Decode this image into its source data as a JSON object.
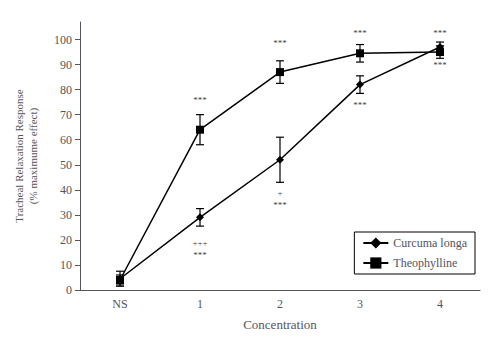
{
  "chart_data": {
    "type": "line",
    "categories": [
      "NS",
      "1",
      "2",
      "3",
      "4"
    ],
    "xlabel": "Concentration",
    "ylabel": "Tracheal Relaxation Response\n(% maximume effect)",
    "ylim": [
      0,
      107
    ],
    "yticks": [
      0,
      10,
      20,
      30,
      40,
      50,
      60,
      70,
      80,
      90,
      100
    ],
    "grid": false,
    "legend": "lower right",
    "series": [
      {
        "name": "Curcuma longa",
        "color": "black",
        "marker": "diamond",
        "values": [
          4.5,
          29.0,
          52.0,
          82.0,
          97.0
        ],
        "yerr": [
          3.0,
          3.5,
          9.0,
          3.5,
          2.0
        ]
      },
      {
        "name": "Theophylline",
        "color": "black",
        "marker": "square",
        "values": [
          4.0,
          64.0,
          87.0,
          94.5,
          95.0
        ],
        "yerr": [
          2.0,
          6.0,
          4.5,
          3.5,
          2.5
        ]
      }
    ],
    "annotations": [
      {
        "x": "1",
        "y": 74,
        "text": "***"
      },
      {
        "x": "2",
        "y": 97,
        "text": "***"
      },
      {
        "x": "3",
        "y": 101,
        "text": "***"
      },
      {
        "x": "4",
        "y": 101,
        "text": "***"
      },
      {
        "x": "1",
        "y": 17,
        "text": "+++"
      },
      {
        "x": "1",
        "y": 12,
        "text": "***"
      },
      {
        "x": "2",
        "y": 37,
        "text": "+"
      },
      {
        "x": "2",
        "y": 32,
        "text": "***"
      },
      {
        "x": "3",
        "y": 72,
        "text": "***"
      },
      {
        "x": "4",
        "y": 88,
        "text": "***"
      }
    ]
  }
}
